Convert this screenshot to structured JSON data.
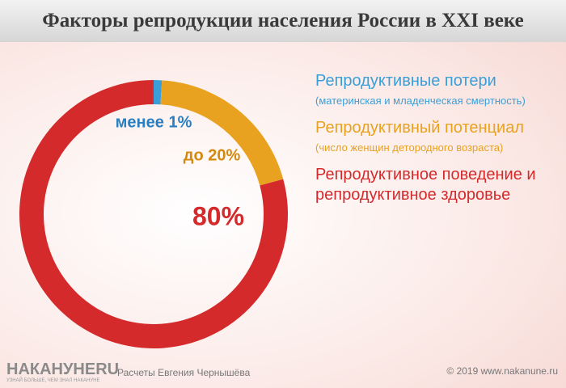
{
  "chart_data": {
    "type": "donut",
    "title": "Факторы репродукции населения России в XXI веке",
    "categories": [
      "Репродуктивные потери",
      "Репродуктивный потенциал",
      "Репродуктивное поведение и репродуктивное здоровье"
    ],
    "descriptions": [
      "(материнская и младенческая смертность)",
      "(число женщин детородного возраста)",
      null
    ],
    "values": [
      1,
      20,
      80
    ],
    "value_labels": [
      "менее 1%",
      "до 20%",
      "80%"
    ],
    "colors": [
      "#3a9fd8",
      "#e9a21f",
      "#d42a2c"
    ],
    "legend": "right"
  },
  "footer": {
    "logo": "НАКАНУНЕRU",
    "slogan": "УЗНАЙ БОЛЬШЕ, ЧЕМ ЗНАЛ НАКАНУНЕ",
    "credit": "Расчеты Евгения Чернышёва",
    "copyright": "© 2019 www.nakanune.ru"
  }
}
